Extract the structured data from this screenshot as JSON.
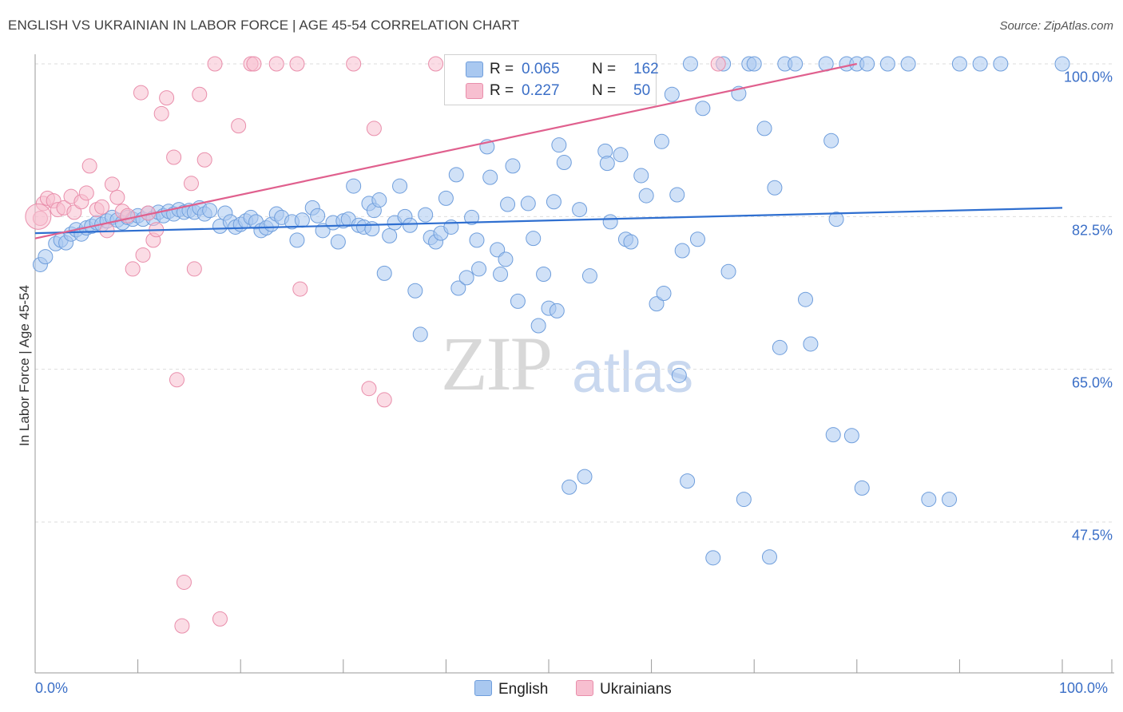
{
  "header": {
    "title": "ENGLISH VS UKRAINIAN IN LABOR FORCE | AGE 45-54 CORRELATION CHART",
    "source": "Source: ZipAtlas.com"
  },
  "watermark": {
    "zip": "ZIP",
    "atlas": "atlas"
  },
  "legend": {
    "english": {
      "r_label": "R =",
      "r_value": "0.065",
      "n_label": "N =",
      "n_value": "162"
    },
    "ukrainians": {
      "r_label": "R =",
      "r_value": "0.227",
      "n_label": "N =",
      "n_value": "50"
    }
  },
  "colors": {
    "english_fill": "#a9c8f0",
    "english_stroke": "#6f9edc",
    "english_line": "#2f6fd0",
    "ukrainian_fill": "#f7bfd0",
    "ukrainian_stroke": "#e98eab",
    "ukrainian_line": "#e0608e",
    "grid": "#dddddd",
    "axis": "#999999",
    "tick_text": "#3b6fc7"
  },
  "chart_data": {
    "type": "scatter",
    "title": "ENGLISH VS UKRAINIAN IN LABOR FORCE | AGE 45-54 CORRELATION CHART",
    "xlabel": "",
    "ylabel": "In Labor Force | Age 45-54",
    "x_tick_labels": [
      "0.0%",
      "100.0%"
    ],
    "y_tick_labels": [
      "100.0%",
      "82.5%",
      "65.0%",
      "47.5%"
    ],
    "y_ticks": [
      100.0,
      82.5,
      65.0,
      47.5
    ],
    "xlim": [
      0,
      100
    ],
    "ylim": [
      32.5,
      102
    ],
    "grid": true,
    "legend_position": "top-center",
    "series": [
      {
        "name": "English",
        "trend": [
          [
            0,
            80.6
          ],
          [
            100,
            83.5
          ]
        ],
        "points": [
          [
            0.5,
            77.0
          ],
          [
            1,
            77.9
          ],
          [
            2,
            79.4
          ],
          [
            2.5,
            79.8
          ],
          [
            3,
            79.5
          ],
          [
            3.5,
            80.5
          ],
          [
            4,
            81.0
          ],
          [
            4.5,
            80.5
          ],
          [
            5,
            81.2
          ],
          [
            5.5,
            81.4
          ],
          [
            6,
            81.8
          ],
          [
            6.5,
            81.6
          ],
          [
            7,
            82.0
          ],
          [
            7.5,
            82.4
          ],
          [
            8,
            82.1
          ],
          [
            8.5,
            81.8
          ],
          [
            9,
            82.4
          ],
          [
            9.5,
            82.2
          ],
          [
            10,
            82.6
          ],
          [
            10.5,
            82.2
          ],
          [
            11,
            82.9
          ],
          [
            11.5,
            82.3
          ],
          [
            12,
            83.0
          ],
          [
            12.5,
            82.6
          ],
          [
            13,
            83.1
          ],
          [
            13.5,
            82.8
          ],
          [
            14,
            83.3
          ],
          [
            14.5,
            83.0
          ],
          [
            15,
            83.2
          ],
          [
            15.5,
            83.0
          ],
          [
            16,
            83.5
          ],
          [
            16.5,
            82.8
          ],
          [
            17,
            83.2
          ],
          [
            18,
            81.4
          ],
          [
            18.5,
            82.9
          ],
          [
            19,
            81.9
          ],
          [
            19.5,
            81.3
          ],
          [
            20,
            81.6
          ],
          [
            20.5,
            82.0
          ],
          [
            21,
            82.4
          ],
          [
            21.5,
            81.9
          ],
          [
            22,
            80.9
          ],
          [
            22.5,
            81.2
          ],
          [
            23,
            81.6
          ],
          [
            23.5,
            82.8
          ],
          [
            24,
            82.4
          ],
          [
            25,
            81.9
          ],
          [
            25.5,
            79.8
          ],
          [
            26,
            82.1
          ],
          [
            27,
            83.5
          ],
          [
            27.5,
            82.6
          ],
          [
            28,
            80.9
          ],
          [
            29,
            81.8
          ],
          [
            29.5,
            79.6
          ],
          [
            30,
            82.0
          ],
          [
            30.5,
            82.2
          ],
          [
            31,
            86.0
          ],
          [
            31.5,
            81.5
          ],
          [
            32,
            81.3
          ],
          [
            32.5,
            84.0
          ],
          [
            32.8,
            81.1
          ],
          [
            33,
            83.2
          ],
          [
            33.5,
            84.4
          ],
          [
            34,
            76.0
          ],
          [
            34.5,
            80.3
          ],
          [
            35,
            81.8
          ],
          [
            35.5,
            86.0
          ],
          [
            36,
            82.5
          ],
          [
            36.5,
            81.5
          ],
          [
            37,
            74.0
          ],
          [
            37.5,
            69.0
          ],
          [
            38,
            82.7
          ],
          [
            38.5,
            80.1
          ],
          [
            39,
            79.6
          ],
          [
            39.5,
            80.6
          ],
          [
            40,
            84.6
          ],
          [
            40.5,
            81.3
          ],
          [
            41,
            87.3
          ],
          [
            41.2,
            74.3
          ],
          [
            42,
            75.5
          ],
          [
            42.5,
            82.4
          ],
          [
            43,
            79.8
          ],
          [
            43.2,
            76.5
          ],
          [
            44,
            90.5
          ],
          [
            44.3,
            87.0
          ],
          [
            45,
            78.7
          ],
          [
            45.3,
            75.9
          ],
          [
            45.8,
            77.6
          ],
          [
            46,
            83.9
          ],
          [
            46.5,
            88.3
          ],
          [
            47,
            72.8
          ],
          [
            48,
            84.0
          ],
          [
            48.5,
            80.0
          ],
          [
            49,
            70.0
          ],
          [
            49.5,
            75.9
          ],
          [
            50,
            72.0
          ],
          [
            50.5,
            84.2
          ],
          [
            50.8,
            71.7
          ],
          [
            51,
            90.7
          ],
          [
            51.5,
            88.7
          ],
          [
            52,
            51.5
          ],
          [
            53,
            83.3
          ],
          [
            53.5,
            52.7
          ],
          [
            54,
            75.7
          ],
          [
            55.5,
            90.0
          ],
          [
            55.7,
            88.6
          ],
          [
            56,
            81.9
          ],
          [
            57,
            89.6
          ],
          [
            57.5,
            79.9
          ],
          [
            58,
            79.6
          ],
          [
            59,
            87.2
          ],
          [
            59.5,
            84.9
          ],
          [
            60.5,
            72.5
          ],
          [
            61,
            91.1
          ],
          [
            61.2,
            73.7
          ],
          [
            62.5,
            85.0
          ],
          [
            62.7,
            64.3
          ],
          [
            63,
            78.6
          ],
          [
            63.5,
            52.2
          ],
          [
            63.8,
            100.0
          ],
          [
            64.5,
            79.9
          ],
          [
            65,
            94.9
          ],
          [
            66,
            43.4
          ],
          [
            67,
            100.0
          ],
          [
            67.5,
            76.2
          ],
          [
            68.5,
            96.6
          ],
          [
            69,
            50.1
          ],
          [
            69.5,
            100.0
          ],
          [
            70,
            100.0
          ],
          [
            71,
            92.6
          ],
          [
            71.5,
            43.5
          ],
          [
            72,
            85.8
          ],
          [
            72.5,
            67.5
          ],
          [
            73,
            100.0
          ],
          [
            74,
            100.0
          ],
          [
            75,
            73.0
          ],
          [
            75.5,
            67.9
          ],
          [
            77,
            100.0
          ],
          [
            77.5,
            91.2
          ],
          [
            77.7,
            57.5
          ],
          [
            78,
            82.2
          ],
          [
            79,
            100.0
          ],
          [
            79.5,
            57.4
          ],
          [
            80,
            100.0
          ],
          [
            80.5,
            51.4
          ],
          [
            81,
            100.0
          ],
          [
            83,
            100.0
          ],
          [
            85,
            100.0
          ],
          [
            87,
            50.1
          ],
          [
            89,
            50.1
          ],
          [
            90,
            100.0
          ],
          [
            92,
            100.0
          ],
          [
            94,
            100.0
          ],
          [
            100,
            100.0
          ],
          [
            48.8,
            100.0
          ],
          [
            62,
            96.5
          ]
        ]
      },
      {
        "name": "Ukrainians",
        "trend": [
          [
            0,
            80.0
          ],
          [
            80,
            100.0
          ]
        ],
        "points": [
          [
            0.5,
            82.3
          ],
          [
            0.8,
            84.0
          ],
          [
            1.2,
            84.6
          ],
          [
            1.8,
            84.3
          ],
          [
            2.2,
            83.3
          ],
          [
            2.8,
            83.5
          ],
          [
            3.5,
            84.8
          ],
          [
            3.8,
            83.0
          ],
          [
            4.5,
            84.2
          ],
          [
            5,
            85.2
          ],
          [
            5.3,
            88.3
          ],
          [
            6,
            83.3
          ],
          [
            6.5,
            83.6
          ],
          [
            7,
            80.9
          ],
          [
            7.5,
            86.2
          ],
          [
            8,
            84.7
          ],
          [
            8.5,
            83.1
          ],
          [
            9,
            82.6
          ],
          [
            9.5,
            76.5
          ],
          [
            10.3,
            96.7
          ],
          [
            10.5,
            78.1
          ],
          [
            11,
            82.9
          ],
          [
            11.5,
            79.8
          ],
          [
            11.8,
            81.0
          ],
          [
            12.3,
            94.3
          ],
          [
            12.8,
            96.1
          ],
          [
            13.5,
            89.3
          ],
          [
            13.8,
            63.8
          ],
          [
            14.5,
            40.6
          ],
          [
            14.3,
            35.6
          ],
          [
            15.2,
            86.3
          ],
          [
            15.5,
            76.5
          ],
          [
            16,
            96.5
          ],
          [
            16.5,
            89.0
          ],
          [
            17.5,
            100.0
          ],
          [
            18,
            36.4
          ],
          [
            19.8,
            92.9
          ],
          [
            21,
            100.0
          ],
          [
            21.3,
            100.0
          ],
          [
            23.5,
            100.0
          ],
          [
            25.5,
            100.0
          ],
          [
            25.8,
            74.2
          ],
          [
            31,
            100.0
          ],
          [
            32.5,
            62.8
          ],
          [
            33,
            92.6
          ],
          [
            34,
            61.5
          ],
          [
            39,
            100.0
          ],
          [
            47,
            100.0
          ],
          [
            66.5,
            100.0
          ],
          [
            0.3,
            82.5
          ]
        ]
      }
    ]
  }
}
